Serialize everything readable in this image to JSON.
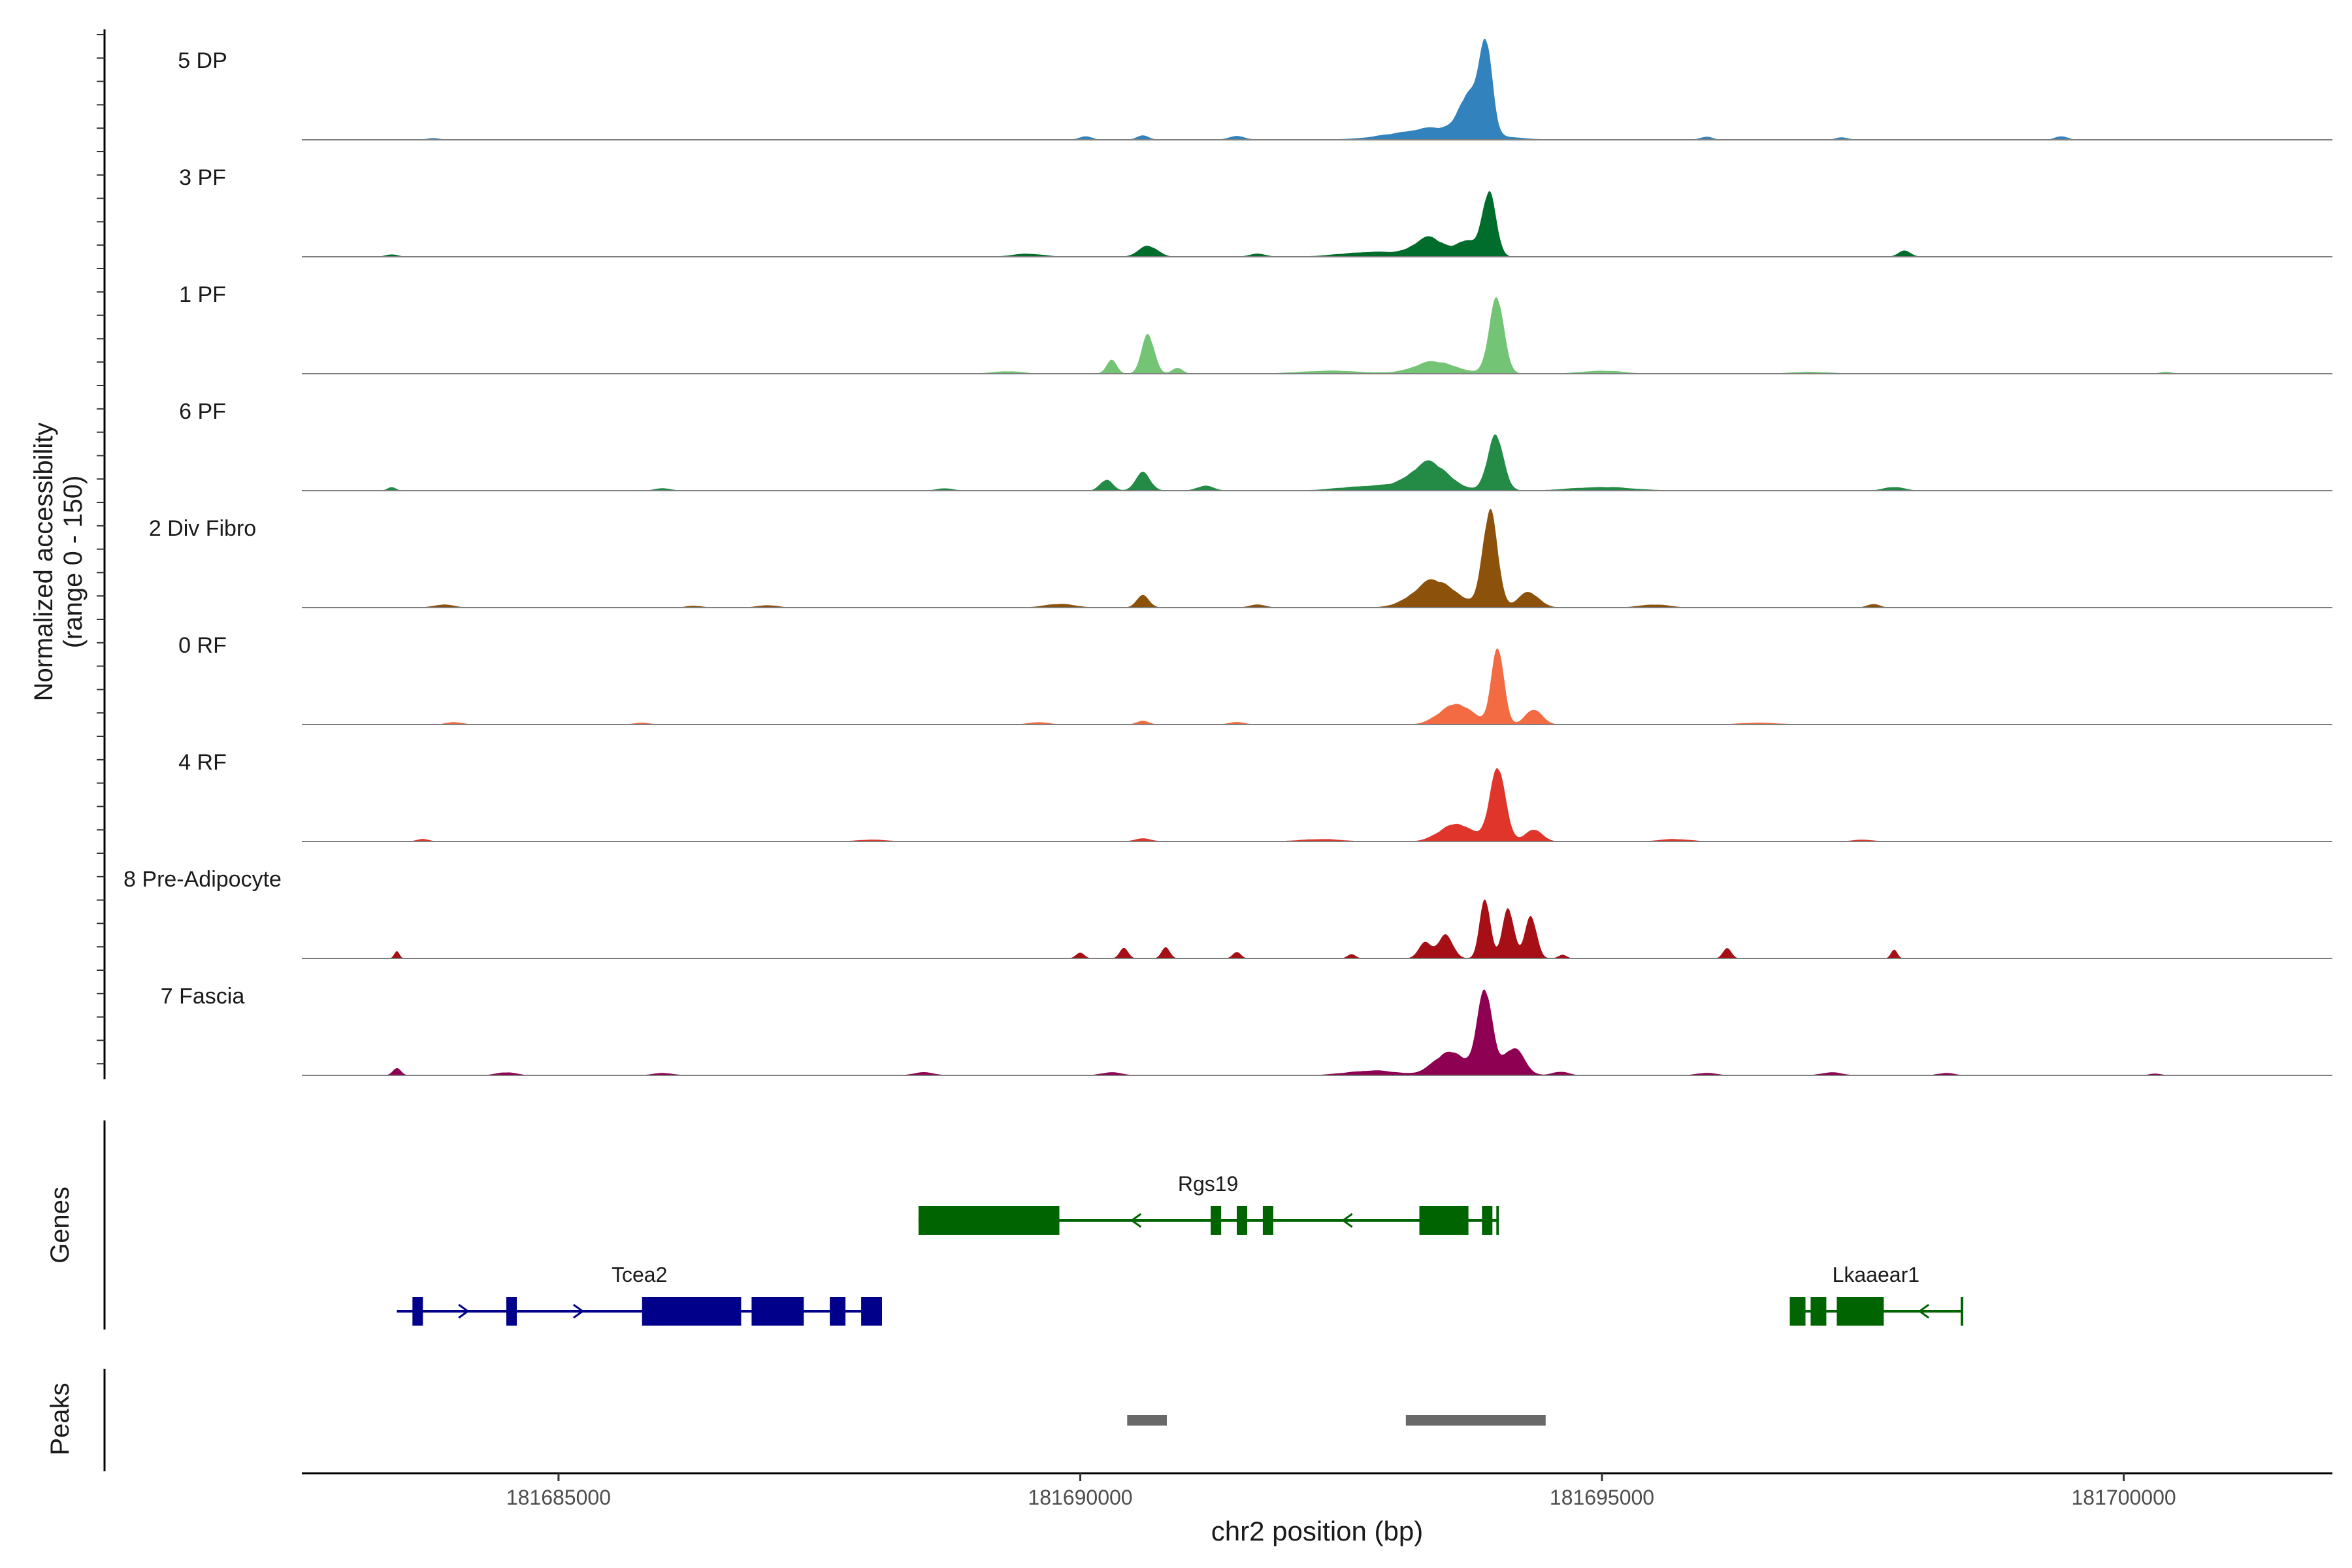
{
  "chart_data": {
    "type": "area",
    "title": "",
    "ylabel_line1": "Normalized accessibility",
    "ylabel_line2": "(range 0 - 150)",
    "ylim": [
      0,
      150
    ],
    "xlabel": "chr2 position (bp)",
    "xlim": [
      181682540,
      181702000
    ],
    "x_ticks": [
      181685000,
      181690000,
      181695000,
      181700000
    ],
    "x_tick_labels": [
      "181685000",
      "181690000",
      "181695000",
      "181700000"
    ],
    "tracks": [
      {
        "name": "5 DP",
        "color": "#3182bd",
        "peaks": [
          [
            181693890,
            150,
            60
          ],
          [
            181693720,
            60,
            90
          ],
          [
            181693450,
            20,
            400
          ],
          [
            181690050,
            6,
            60
          ],
          [
            181690600,
            7,
            60
          ],
          [
            181691500,
            6,
            80
          ],
          [
            181696000,
            5,
            60
          ],
          [
            181699400,
            6,
            60
          ],
          [
            181697300,
            4,
            60
          ],
          [
            181683800,
            3,
            60
          ]
        ]
      },
      {
        "name": "3 PF",
        "color": "#006d2c",
        "peaks": [
          [
            181693920,
            110,
            65
          ],
          [
            181693350,
            30,
            150
          ],
          [
            181693700,
            25,
            90
          ],
          [
            181690650,
            18,
            90
          ],
          [
            181692800,
            8,
            300
          ],
          [
            181689500,
            5,
            150
          ],
          [
            181697900,
            10,
            60
          ],
          [
            181691700,
            5,
            80
          ],
          [
            181683400,
            4,
            60
          ]
        ]
      },
      {
        "name": "1 PF",
        "color": "#74c476",
        "peaks": [
          [
            181693990,
            130,
            70
          ],
          [
            181690650,
            65,
            60
          ],
          [
            181690300,
            22,
            50
          ],
          [
            181693400,
            20,
            200
          ],
          [
            181690930,
            10,
            50
          ],
          [
            181692400,
            5,
            300
          ],
          [
            181695000,
            5,
            200
          ],
          [
            181689300,
            4,
            150
          ],
          [
            181697000,
            3,
            200
          ],
          [
            181700400,
            3,
            60
          ]
        ]
      },
      {
        "name": "6 PF",
        "color": "#238b45",
        "peaks": [
          [
            181693980,
            95,
            75
          ],
          [
            181693350,
            45,
            180
          ],
          [
            181690600,
            30,
            70
          ],
          [
            181690250,
            18,
            60
          ],
          [
            181691200,
            8,
            80
          ],
          [
            181692800,
            8,
            300
          ],
          [
            181695000,
            6,
            300
          ],
          [
            181683400,
            6,
            40
          ],
          [
            181697800,
            6,
            100
          ],
          [
            181686000,
            4,
            80
          ],
          [
            181688700,
            4,
            80
          ]
        ]
      },
      {
        "name": "2 Div Fibro",
        "color": "#8c510a",
        "peaks": [
          [
            181693930,
            165,
            70
          ],
          [
            181693400,
            45,
            200
          ],
          [
            181694300,
            25,
            100
          ],
          [
            181690600,
            20,
            60
          ],
          [
            181689800,
            6,
            150
          ],
          [
            181691700,
            5,
            80
          ],
          [
            181695500,
            5,
            150
          ],
          [
            181697600,
            6,
            60
          ],
          [
            181683900,
            5,
            100
          ],
          [
            181687000,
            4,
            100
          ],
          [
            181686300,
            3,
            80
          ]
        ]
      },
      {
        "name": "0 RF",
        "color": "#f26b43",
        "peaks": [
          [
            181694000,
            130,
            60
          ],
          [
            181693600,
            35,
            150
          ],
          [
            181694350,
            25,
            80
          ],
          [
            181690600,
            6,
            60
          ],
          [
            181689600,
            4,
            100
          ],
          [
            181691500,
            4,
            80
          ],
          [
            181684000,
            4,
            80
          ],
          [
            181696500,
            3,
            200
          ],
          [
            181685800,
            3,
            80
          ]
        ]
      },
      {
        "name": "4 RF",
        "color": "#e0352a",
        "peaks": [
          [
            181694000,
            125,
            75
          ],
          [
            181693600,
            30,
            150
          ],
          [
            181694350,
            20,
            80
          ],
          [
            181690600,
            5,
            80
          ],
          [
            181683700,
            4,
            60
          ],
          [
            181692300,
            4,
            200
          ],
          [
            181695700,
            4,
            150
          ],
          [
            181688000,
            3,
            150
          ],
          [
            181697500,
            3,
            100
          ]
        ]
      },
      {
        "name": "8 Pre-Adipocyte",
        "color": "#a50f15",
        "peaks": [
          [
            181693880,
            100,
            50
          ],
          [
            181694100,
            85,
            55
          ],
          [
            181694320,
            70,
            55
          ],
          [
            181693500,
            40,
            70
          ],
          [
            181693300,
            25,
            60
          ],
          [
            181690420,
            18,
            40
          ],
          [
            181690820,
            18,
            40
          ],
          [
            181690000,
            10,
            40
          ],
          [
            181691500,
            10,
            40
          ],
          [
            181696200,
            18,
            40
          ],
          [
            181697800,
            15,
            30
          ],
          [
            181683450,
            12,
            25
          ],
          [
            181692600,
            7,
            40
          ],
          [
            181694620,
            6,
            40
          ]
        ]
      },
      {
        "name": "7 Fascia",
        "color": "#8e0152",
        "peaks": [
          [
            181693880,
            140,
            70
          ],
          [
            181693550,
            40,
            150
          ],
          [
            181694150,
            45,
            100
          ],
          [
            181692800,
            8,
            250
          ],
          [
            181694600,
            6,
            80
          ],
          [
            181683450,
            12,
            40
          ],
          [
            181684500,
            5,
            100
          ],
          [
            181686000,
            4,
            100
          ],
          [
            181688500,
            5,
            100
          ],
          [
            181690300,
            5,
            100
          ],
          [
            181696000,
            4,
            100
          ],
          [
            181697200,
            5,
            100
          ],
          [
            181698300,
            4,
            80
          ],
          [
            181700300,
            3,
            60
          ]
        ]
      }
    ],
    "genes_label": "Genes",
    "genes": [
      {
        "name": "Rgs19",
        "strand": "-",
        "color": "#006400",
        "start": 181688450,
        "end": 181694000,
        "row": 1,
        "exons": [
          [
            181688450,
            181689800
          ],
          [
            181691250,
            181691350
          ],
          [
            181691500,
            181691600
          ],
          [
            181691750,
            181691850
          ],
          [
            181693250,
            181693720
          ],
          [
            181693850,
            181693950
          ]
        ]
      },
      {
        "name": "Tcea2",
        "strand": "+",
        "color": "#00008b",
        "start": 181683450,
        "end": 181688100,
        "row": 2,
        "exons": [
          [
            181683600,
            181683700
          ],
          [
            181684500,
            181684600
          ],
          [
            181685800,
            181686750
          ],
          [
            181686850,
            181687350
          ],
          [
            181687600,
            181687750
          ],
          [
            181687900,
            181688100
          ]
        ]
      },
      {
        "name": "Lkaaear1",
        "strand": "-",
        "color": "#006400",
        "start": 181696800,
        "end": 181698450,
        "row": 2,
        "exons": [
          [
            181696800,
            181696950
          ],
          [
            181697000,
            181697150
          ],
          [
            181697250,
            181697700
          ]
        ]
      }
    ],
    "peaks_label": "Peaks",
    "peak_regions": [
      [
        181690450,
        181690830
      ],
      [
        181693120,
        181694460
      ]
    ],
    "peak_color": "#696969"
  }
}
